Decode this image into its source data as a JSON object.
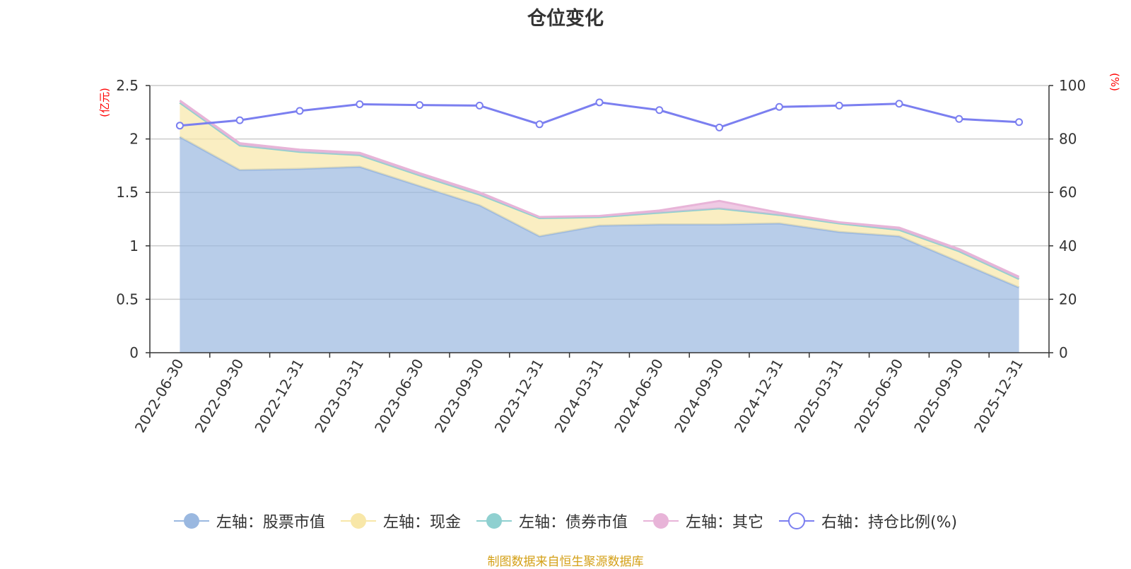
{
  "chart_data": {
    "type": "area",
    "title": "仓位变化",
    "left_axis": {
      "unit": "(亿元)",
      "ticks": [
        "0",
        "0.5",
        "1",
        "1.5",
        "2",
        "2.5"
      ],
      "ylim": [
        0,
        2.5
      ]
    },
    "right_axis": {
      "unit": "(%)",
      "ticks": [
        "0",
        "20",
        "40",
        "60",
        "80",
        "100"
      ],
      "ylim": [
        0,
        100
      ]
    },
    "categories": [
      "2022-06-30",
      "2022-09-30",
      "2022-12-31",
      "2023-03-31",
      "2023-06-30",
      "2023-09-30",
      "2023-12-31",
      "2024-03-31",
      "2024-06-30",
      "2024-09-30",
      "2024-12-31",
      "2025-03-31",
      "2025-06-30",
      "2025-09-30",
      "2025-12-31"
    ],
    "series": [
      {
        "name": "左轴：股票市值",
        "axis": "left",
        "stack": true,
        "color": "#9ab8e0",
        "values": [
          2.02,
          1.71,
          1.72,
          1.74,
          1.56,
          1.38,
          1.09,
          1.19,
          1.2,
          1.2,
          1.21,
          1.13,
          1.09,
          0.85,
          0.61
        ]
      },
      {
        "name": "左轴：现金",
        "axis": "left",
        "stack": true,
        "color": "#f8e7a8",
        "values": [
          0.32,
          0.23,
          0.16,
          0.11,
          0.1,
          0.1,
          0.17,
          0.08,
          0.11,
          0.15,
          0.08,
          0.08,
          0.06,
          0.1,
          0.08
        ]
      },
      {
        "name": "左轴：债券市值",
        "axis": "left",
        "stack": true,
        "color": "#8fd0d0",
        "values": [
          0,
          0,
          0,
          0,
          0,
          0,
          0,
          0,
          0,
          0,
          0,
          0,
          0,
          0,
          0
        ]
      },
      {
        "name": "左轴：其它",
        "axis": "left",
        "stack": true,
        "color": "#e8b4d8",
        "values": [
          0.02,
          0.02,
          0.02,
          0.02,
          0.02,
          0.02,
          0.01,
          0.01,
          0.02,
          0.07,
          0.02,
          0.01,
          0.02,
          0.02,
          0.02
        ]
      },
      {
        "name": "右轴：持仓比例(%)",
        "axis": "right",
        "stack": false,
        "color": "#7b7ff0",
        "values": [
          85,
          87,
          90.5,
          93,
          92.7,
          92.5,
          85.5,
          93.7,
          90.8,
          84.3,
          92,
          92.5,
          93.2,
          87.5,
          86.3
        ]
      }
    ]
  },
  "legend": {
    "items": [
      "左轴：股票市值",
      "左轴：现金",
      "左轴：债券市值",
      "左轴：其它",
      "右轴：持仓比例(%)"
    ]
  },
  "footer": {
    "source": "制图数据来自恒生聚源数据库"
  }
}
